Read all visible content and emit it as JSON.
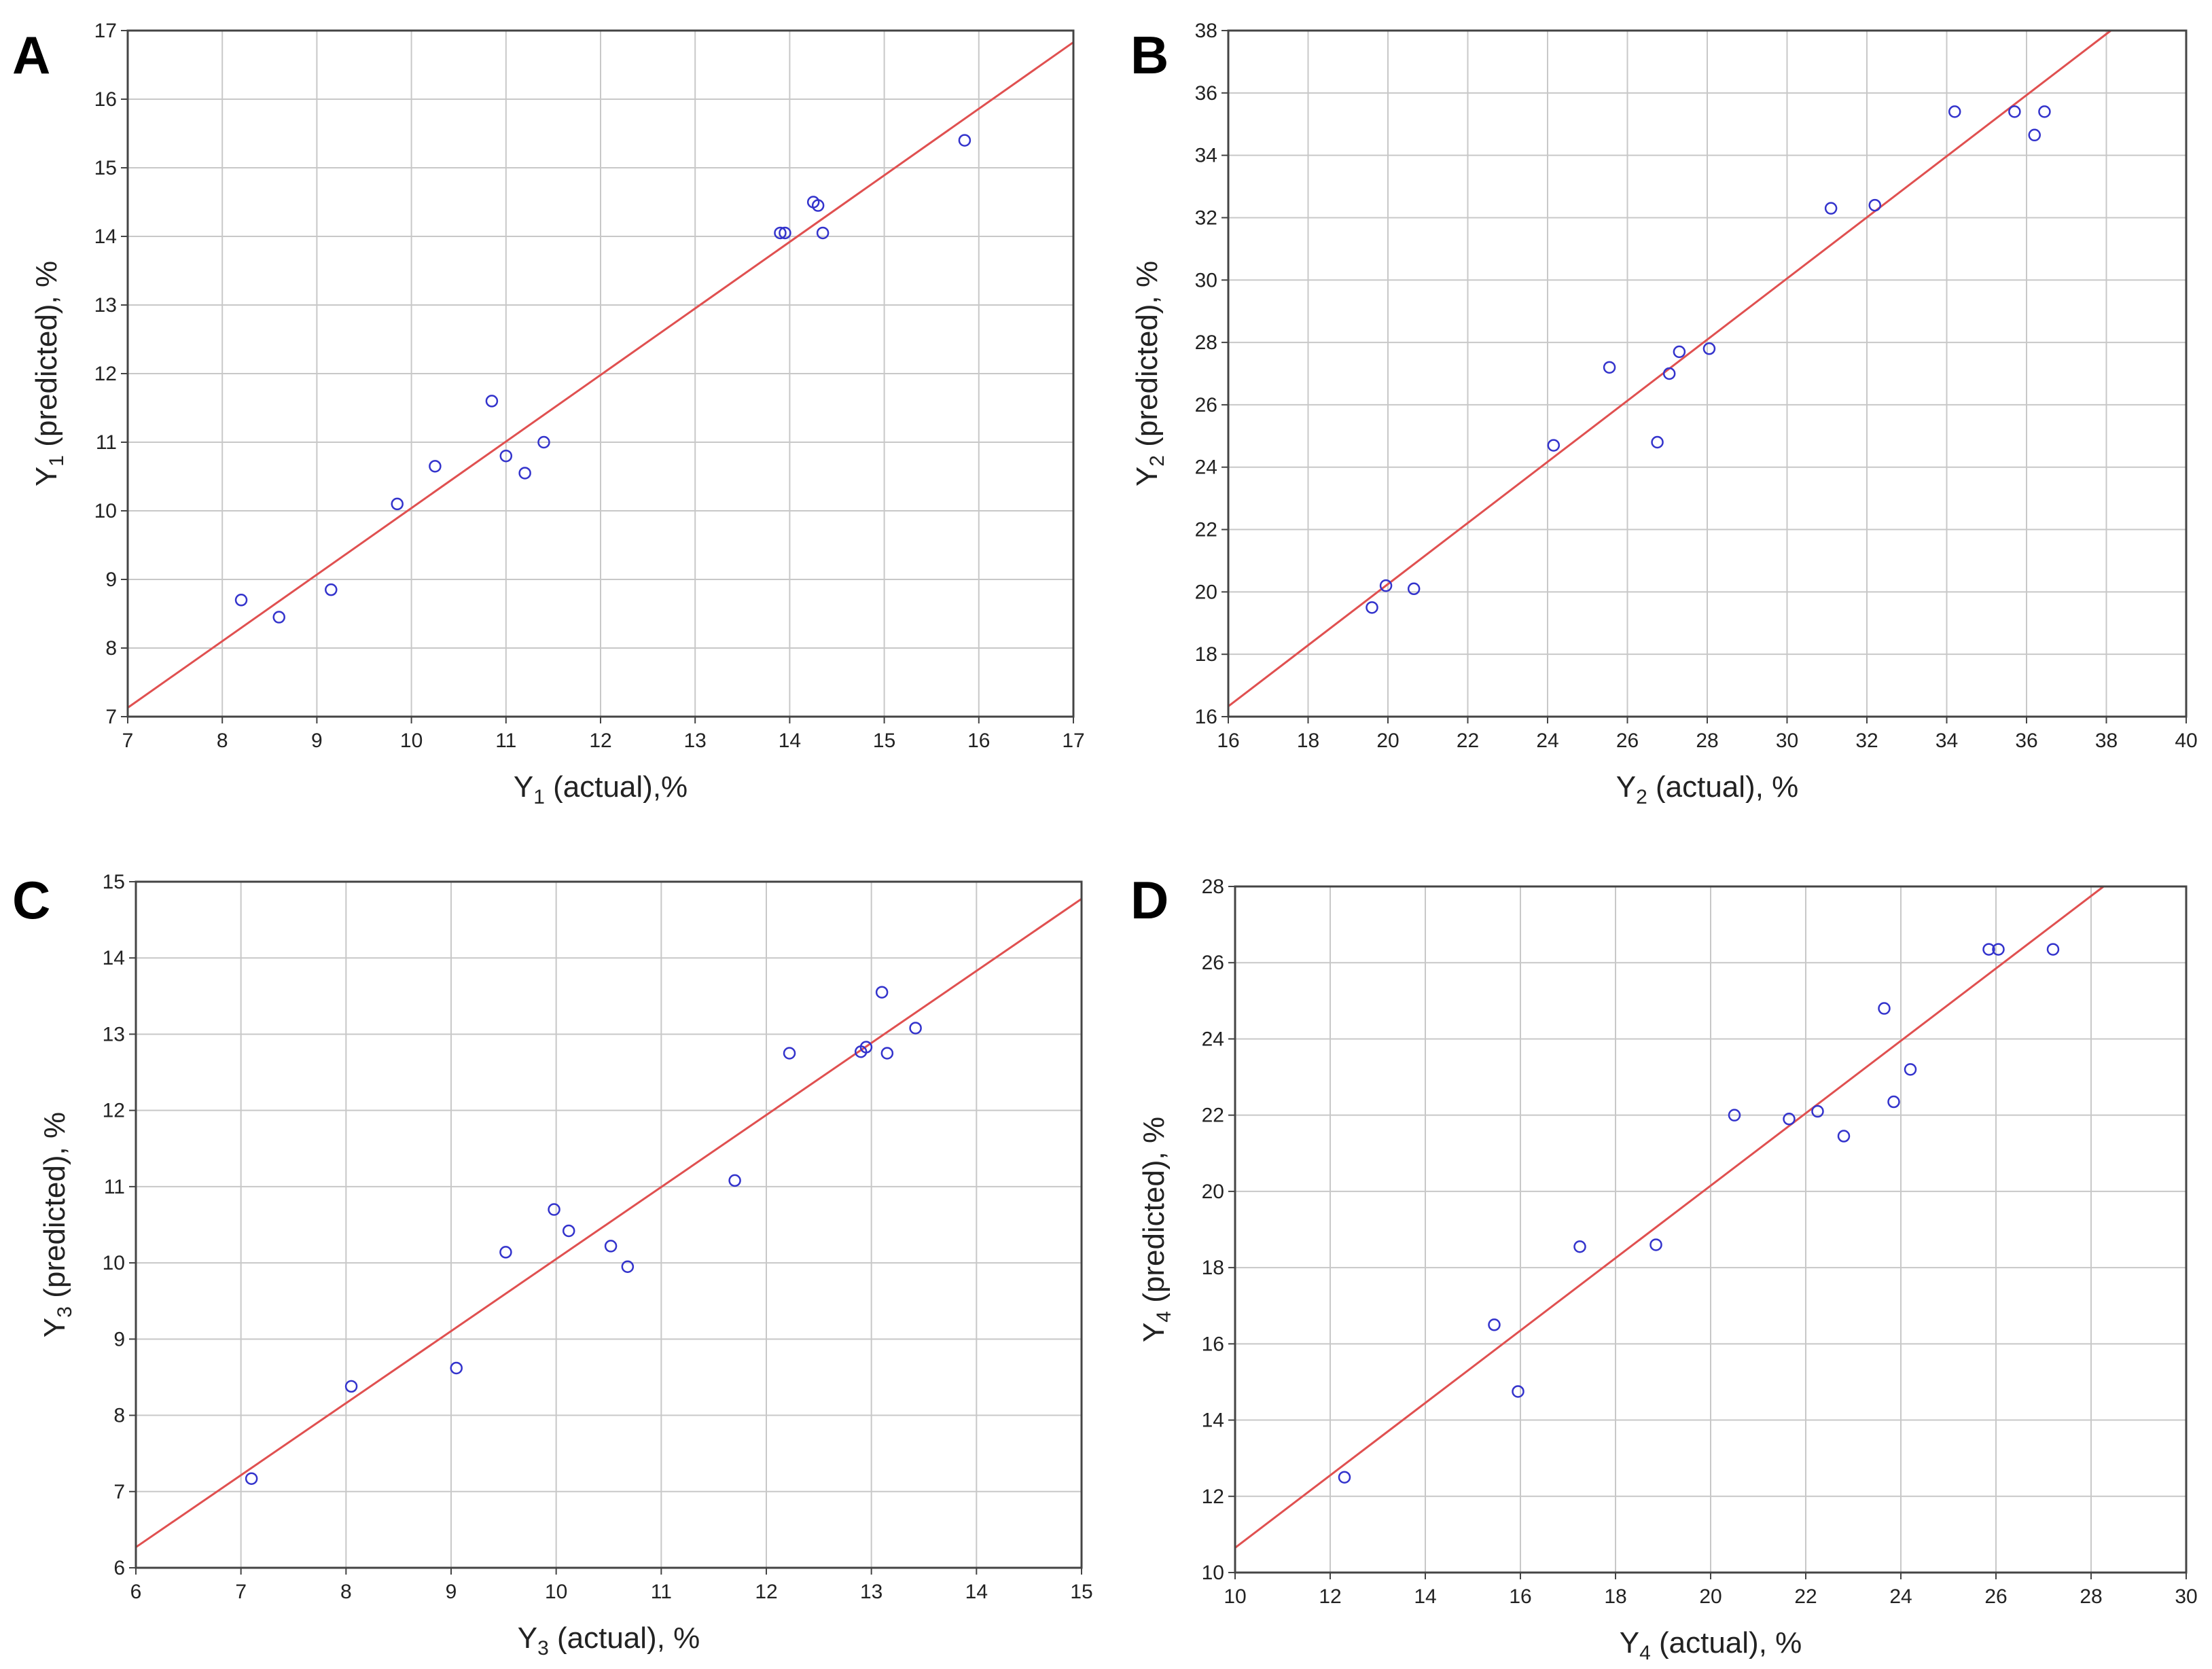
{
  "figure": {
    "colors": {
      "points": "#3333cc",
      "fit_line": "#e05050",
      "grid": "#c8c8c8",
      "frame": "#444444"
    }
  },
  "chart_data": [
    {
      "panel": "A",
      "type": "scatter",
      "title": "",
      "xlabel_base": "Y",
      "xlabel_sub": "1",
      "xlabel_rest": " (actual),%",
      "ylabel_base": "Y",
      "ylabel_sub": "1",
      "ylabel_rest": " (predicted), %",
      "xlim": [
        7,
        17
      ],
      "ylim": [
        7,
        17
      ],
      "xticks": [
        7,
        8,
        9,
        10,
        11,
        12,
        13,
        14,
        15,
        16,
        17
      ],
      "yticks": [
        7,
        8,
        9,
        10,
        11,
        12,
        13,
        14,
        15,
        16,
        17
      ],
      "grid": true,
      "fit_line": {
        "slope": 0.97,
        "intercept": 0.34
      },
      "points": [
        [
          8.2,
          8.7
        ],
        [
          8.6,
          8.45
        ],
        [
          9.15,
          8.85
        ],
        [
          9.85,
          10.1
        ],
        [
          10.25,
          10.65
        ],
        [
          10.85,
          11.6
        ],
        [
          11.0,
          10.8
        ],
        [
          11.2,
          10.55
        ],
        [
          11.4,
          11.0
        ],
        [
          13.9,
          14.05
        ],
        [
          13.95,
          14.05
        ],
        [
          14.25,
          14.5
        ],
        [
          14.3,
          14.45
        ],
        [
          14.35,
          14.05
        ],
        [
          15.85,
          15.4
        ]
      ]
    },
    {
      "panel": "B",
      "type": "scatter",
      "title": "",
      "xlabel_base": "Y",
      "xlabel_sub": "2",
      "xlabel_rest": " (actual), %",
      "ylabel_base": "Y",
      "ylabel_sub": "2",
      "ylabel_rest": " (predicted), %",
      "xlim": [
        16,
        40
      ],
      "ylim": [
        16,
        38
      ],
      "xticks": [
        16,
        18,
        20,
        22,
        24,
        26,
        28,
        30,
        32,
        34,
        36,
        38,
        40
      ],
      "yticks": [
        16,
        18,
        20,
        22,
        24,
        26,
        28,
        30,
        32,
        34,
        36,
        38
      ],
      "grid": true,
      "fit_line": {
        "slope": 0.98,
        "intercept": 0.65
      },
      "points": [
        [
          19.6,
          19.5
        ],
        [
          19.95,
          20.2
        ],
        [
          20.65,
          20.1
        ],
        [
          24.15,
          24.7
        ],
        [
          25.55,
          27.2
        ],
        [
          26.75,
          24.8
        ],
        [
          27.05,
          27.0
        ],
        [
          27.3,
          27.7
        ],
        [
          28.05,
          27.8
        ],
        [
          31.1,
          32.3
        ],
        [
          32.2,
          32.4
        ],
        [
          34.2,
          35.4
        ],
        [
          35.7,
          35.4
        ],
        [
          36.2,
          34.65
        ],
        [
          36.45,
          35.4
        ]
      ]
    },
    {
      "panel": "C",
      "type": "scatter",
      "title": "",
      "xlabel_base": "Y",
      "xlabel_sub": "3",
      "xlabel_rest": " (actual), %",
      "ylabel_base": "Y",
      "ylabel_sub": "3",
      "ylabel_rest": " (predicted), %",
      "xlim": [
        6,
        15
      ],
      "ylim": [
        6,
        15
      ],
      "xticks": [
        6,
        7,
        8,
        9,
        10,
        11,
        12,
        13,
        14,
        15
      ],
      "yticks": [
        6,
        7,
        8,
        9,
        10,
        11,
        12,
        13,
        14,
        15
      ],
      "grid": true,
      "fit_line": {
        "slope": 0.945,
        "intercept": 0.6
      },
      "points": [
        [
          7.1,
          7.17
        ],
        [
          8.05,
          8.38
        ],
        [
          9.05,
          8.62
        ],
        [
          9.52,
          10.14
        ],
        [
          9.98,
          10.7
        ],
        [
          10.12,
          10.42
        ],
        [
          10.52,
          10.22
        ],
        [
          10.68,
          9.95
        ],
        [
          11.7,
          11.08
        ],
        [
          12.22,
          12.75
        ],
        [
          12.9,
          12.77
        ],
        [
          12.95,
          12.83
        ],
        [
          13.1,
          13.55
        ],
        [
          13.15,
          12.75
        ],
        [
          13.42,
          13.08
        ]
      ]
    },
    {
      "panel": "D",
      "type": "scatter",
      "title": "",
      "xlabel_base": "Y",
      "xlabel_sub": "4",
      "xlabel_rest": " (actual), %",
      "ylabel_base": "Y",
      "ylabel_sub": "4",
      "ylabel_rest": " (predicted), %",
      "xlim": [
        10,
        30
      ],
      "ylim": [
        10,
        28
      ],
      "xticks": [
        10,
        12,
        14,
        16,
        18,
        20,
        22,
        24,
        26,
        28,
        30
      ],
      "yticks": [
        10,
        12,
        14,
        16,
        18,
        20,
        22,
        24,
        26,
        28
      ],
      "grid": true,
      "fit_line": {
        "slope": 0.95,
        "intercept": 1.15
      },
      "points": [
        [
          12.3,
          12.5
        ],
        [
          15.45,
          16.5
        ],
        [
          15.95,
          14.75
        ],
        [
          17.25,
          18.55
        ],
        [
          18.85,
          18.6
        ],
        [
          20.5,
          22.0
        ],
        [
          21.65,
          21.9
        ],
        [
          22.25,
          22.1
        ],
        [
          22.8,
          21.45
        ],
        [
          23.65,
          24.8
        ],
        [
          23.85,
          22.35
        ],
        [
          24.2,
          23.2
        ],
        [
          25.85,
          26.35
        ],
        [
          26.05,
          26.35
        ],
        [
          27.2,
          26.35
        ]
      ]
    }
  ]
}
